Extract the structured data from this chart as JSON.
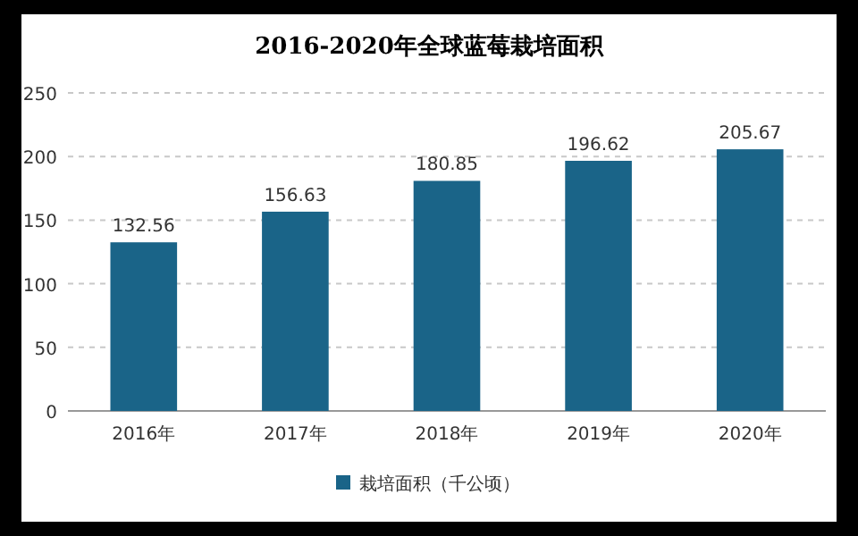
{
  "chart_data": {
    "type": "bar",
    "title": "2016-2020年全球蓝莓栽培面积",
    "categories": [
      "2016年",
      "2017年",
      "2018年",
      "2019年",
      "2020年"
    ],
    "series": [
      {
        "name": "栽培面积（千公顷）",
        "color": "#1a6488",
        "values": [
          132.56,
          156.63,
          180.85,
          196.62,
          205.67
        ]
      }
    ],
    "ylim": [
      0,
      250
    ],
    "yticks": [
      0,
      50,
      100,
      150,
      200,
      250
    ],
    "grid": "y",
    "data_labels": true,
    "legend": "bottom"
  }
}
